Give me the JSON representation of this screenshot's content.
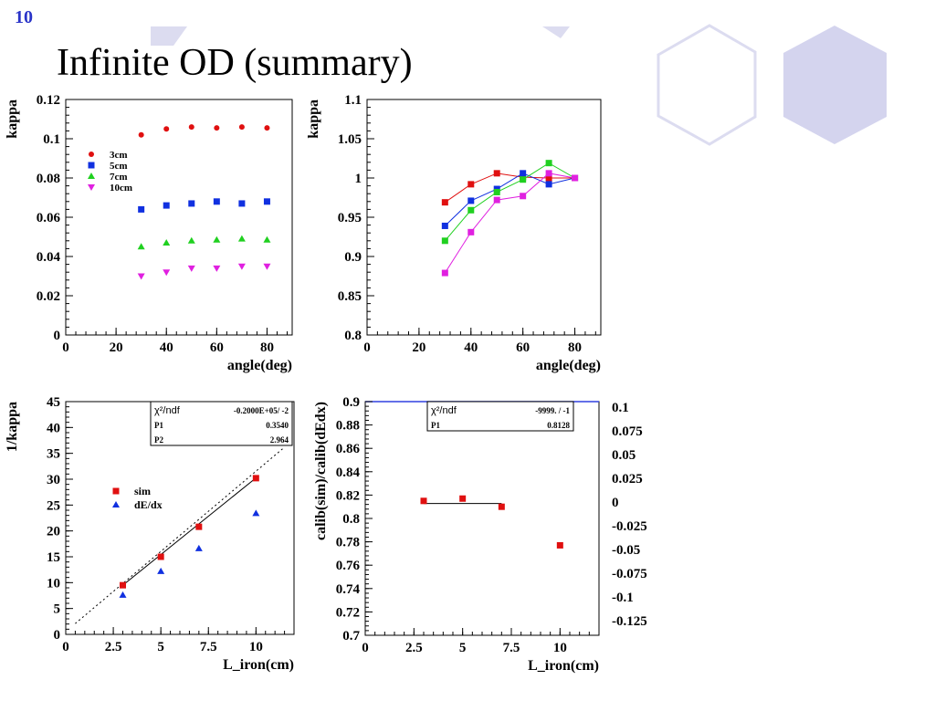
{
  "slide": {
    "number": "10",
    "title": "Infinite OD (summary)"
  },
  "chart_data": [
    {
      "type": "scatter",
      "xlabel": "angle(deg)",
      "ylabel": "kappa",
      "xlim": [
        0,
        90
      ],
      "ylim": [
        0,
        0.12
      ],
      "xticks": [
        "0",
        "20",
        "40",
        "60",
        "80"
      ],
      "yticks": [
        "0",
        "0.02",
        "0.04",
        "0.06",
        "0.08",
        "0.1",
        "0.12"
      ],
      "legend_position": "upper-left",
      "x": [
        30,
        40,
        50,
        60,
        70,
        80
      ],
      "series": [
        {
          "name": "3cm",
          "marker": "circle",
          "color": "#e01010",
          "values": [
            0.102,
            0.105,
            0.106,
            0.1055,
            0.106,
            0.1055
          ]
        },
        {
          "name": "5cm",
          "marker": "square",
          "color": "#1030e0",
          "values": [
            0.064,
            0.066,
            0.067,
            0.068,
            0.067,
            0.068
          ]
        },
        {
          "name": "7cm",
          "marker": "triangle-up",
          "color": "#20d020",
          "values": [
            0.045,
            0.047,
            0.048,
            0.0485,
            0.049,
            0.0485
          ]
        },
        {
          "name": "10cm",
          "marker": "triangle-down",
          "color": "#e020e0",
          "values": [
            0.03,
            0.032,
            0.034,
            0.034,
            0.035,
            0.035
          ]
        }
      ]
    },
    {
      "type": "line",
      "xlabel": "angle(deg)",
      "ylabel": "kappa",
      "xlim": [
        0,
        90
      ],
      "ylim": [
        0.8,
        1.1
      ],
      "xticks": [
        "0",
        "20",
        "40",
        "60",
        "80"
      ],
      "yticks": [
        "0.8",
        "0.85",
        "0.9",
        "0.95",
        "1",
        "1.05",
        "1.1"
      ],
      "x": [
        30,
        40,
        50,
        60,
        70,
        80
      ],
      "series": [
        {
          "color": "#e01010",
          "values": [
            0.969,
            0.992,
            1.006,
            1.001,
            1.0,
            1.0
          ]
        },
        {
          "color": "#1030e0",
          "values": [
            0.939,
            0.971,
            0.986,
            1.006,
            0.992,
            1.0
          ]
        },
        {
          "color": "#20d020",
          "values": [
            0.92,
            0.959,
            0.982,
            0.998,
            1.019,
            1.0
          ]
        },
        {
          "color": "#e020e0",
          "values": [
            0.879,
            0.931,
            0.972,
            0.977,
            1.006,
            1.0
          ]
        }
      ]
    },
    {
      "type": "scatter",
      "xlabel": "L_iron(cm)",
      "ylabel": "1/kappa",
      "xlim": [
        0,
        12
      ],
      "ylim": [
        0,
        45
      ],
      "xticks": [
        "0",
        "2.5",
        "5",
        "7.5",
        "10"
      ],
      "yticks": [
        "0",
        "5",
        "10",
        "15",
        "20",
        "25",
        "30",
        "35",
        "40",
        "45"
      ],
      "x": [
        3,
        5,
        7,
        10
      ],
      "series": [
        {
          "name": "sim",
          "marker": "square",
          "color": "#e01010",
          "values": [
            9.5,
            15.0,
            20.8,
            30.2
          ]
        },
        {
          "name": "dE/dx",
          "marker": "triangle-up",
          "color": "#1030e0",
          "values": [
            7.6,
            12.2,
            16.6,
            23.4
          ]
        }
      ],
      "fit": {
        "x": [
          3,
          10
        ],
        "y": [
          9.5,
          30.25
        ]
      },
      "dotted_line": {
        "x": [
          0.5,
          11.5
        ],
        "y": [
          2.09,
          36.19
        ]
      },
      "stats": {
        "label": "χ²/ndf",
        "chi2": "-0.2000E+05/  -2",
        "p1_label": "P1",
        "p1": "0.3540",
        "p2_label": "P2",
        "p2": "2.964"
      }
    },
    {
      "type": "scatter",
      "xlabel": "L_iron(cm)",
      "ylabel": "calib(sim)/calib(dEdx)",
      "xlim": [
        0,
        12
      ],
      "ylim": [
        0.7,
        0.9
      ],
      "xticks": [
        "0",
        "2.5",
        "5",
        "7.5",
        "10"
      ],
      "yticks": [
        "0.7",
        "0.72",
        "0.74",
        "0.76",
        "0.78",
        "0.8",
        "0.82",
        "0.84",
        "0.86",
        "0.88",
        "0.9"
      ],
      "right_ticks": [
        "0.1",
        "0.075",
        "0.05",
        "0.025",
        "0",
        "-0.025",
        "-0.05",
        "-0.075",
        "-0.1",
        "-0.125"
      ],
      "x": [
        3,
        5,
        7,
        10
      ],
      "series": [
        {
          "marker": "square",
          "color": "#e01010",
          "values": [
            0.815,
            0.817,
            0.81,
            0.777
          ]
        }
      ],
      "fit": {
        "x": [
          3,
          7
        ],
        "y": [
          0.8128,
          0.8128
        ]
      },
      "stats": {
        "label": "χ²/ndf",
        "chi2": "-9999.  /  -1",
        "p1_label": "P1",
        "p1": "0.8128"
      }
    }
  ]
}
